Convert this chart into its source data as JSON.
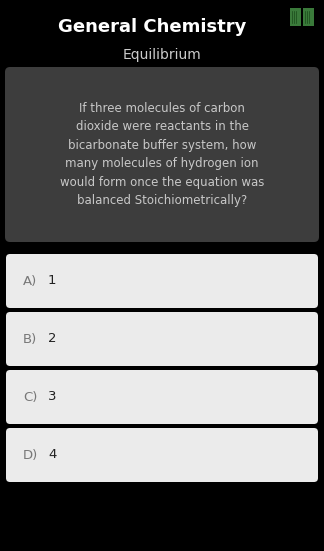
{
  "title": "General Chemistry",
  "subtitle": "Equilibrium",
  "question": "If three molecules of carbon\ndioxide were reactants in the\nbicarbonate buffer system, how\nmany molecules of hydrogen ion\nwould form once the equation was\nbalanced Stoichiometrically?",
  "options": [
    {
      "label": "A)",
      "text": "1"
    },
    {
      "label": "B)",
      "text": "2"
    },
    {
      "label": "C)",
      "text": "3"
    },
    {
      "label": "D)",
      "text": "4"
    }
  ],
  "bg_color": "#000000",
  "title_color": "#ffffff",
  "subtitle_color": "#cccccc",
  "question_box_color": "#3d3d3d",
  "question_text_color": "#c8c8c8",
  "option_box_color": "#ebebeb",
  "option_label_color": "#777777",
  "option_text_color": "#222222",
  "title_fontsize": 13,
  "subtitle_fontsize": 10,
  "question_fontsize": 8.5,
  "option_fontsize": 9.5
}
